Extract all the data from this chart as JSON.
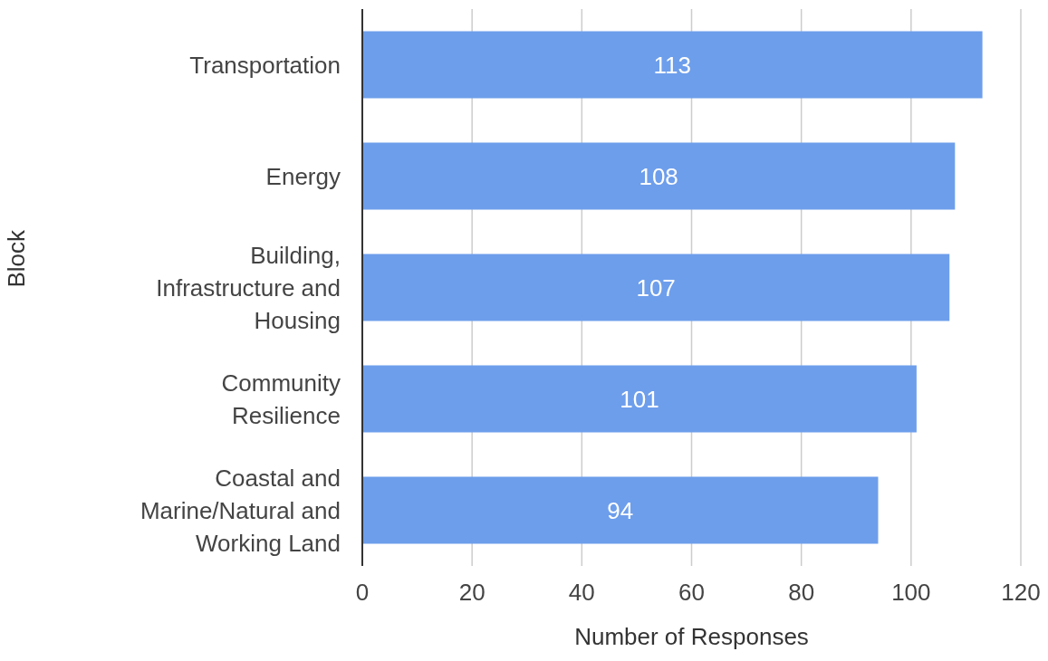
{
  "chart_data": {
    "type": "bar",
    "orientation": "horizontal",
    "xlabel": "Number of Responses",
    "ylabel": "Block",
    "categories": [
      "Transportation",
      "Energy",
      "Building, Infrastructure and Housing",
      "Community Resilience",
      "Coastal and Marine/Natural and Working Land"
    ],
    "values": [
      113,
      108,
      107,
      101,
      94
    ],
    "color": "#6d9eeb",
    "xlim": [
      0,
      120
    ],
    "xticks": [
      0,
      20,
      40,
      60,
      80,
      100,
      120
    ],
    "grid": "x",
    "data_labels": true,
    "legend": false
  }
}
